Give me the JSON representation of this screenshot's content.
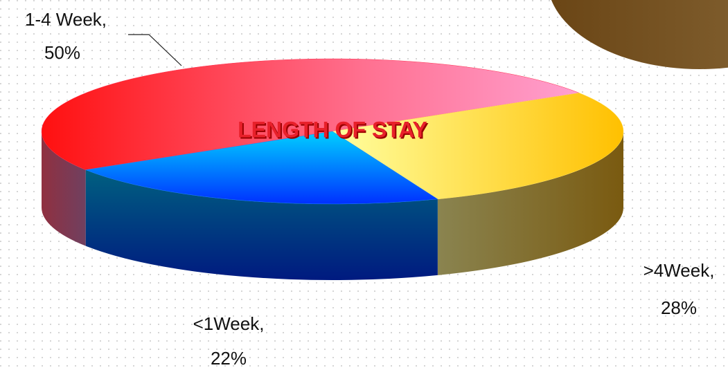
{
  "chart_data": {
    "type": "pie",
    "title": "LENGTH OF STAY",
    "categories": [
      "1-4 Week,",
      ">4Week,",
      "<1Week,"
    ],
    "values": [
      50,
      28,
      22
    ],
    "value_labels": [
      "50%",
      "28%",
      "22%"
    ],
    "colors": [
      "#ff3050",
      "#ffe060",
      "#1a80ff"
    ]
  }
}
